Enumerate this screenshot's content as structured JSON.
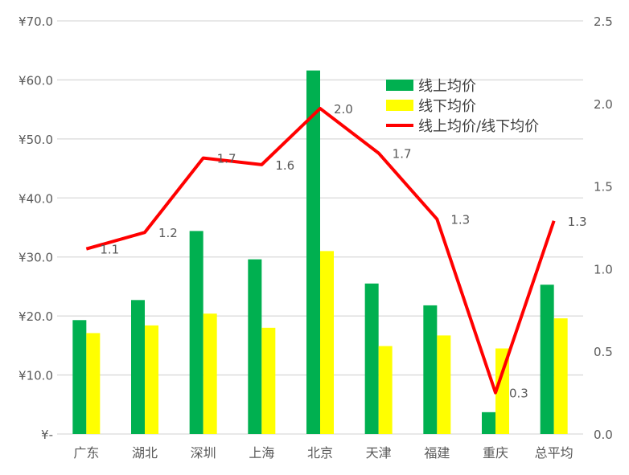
{
  "chart_data": {
    "type": "bar+line",
    "categories": [
      "广东",
      "湖北",
      "深圳",
      "上海",
      "北京",
      "天津",
      "福建",
      "重庆",
      "总平均"
    ],
    "series": [
      {
        "name": "线上均价",
        "type": "bar",
        "axis": "left",
        "color": "#00B050",
        "values": [
          19.3,
          22.7,
          34.4,
          29.6,
          61.6,
          25.5,
          21.8,
          3.7,
          25.3
        ]
      },
      {
        "name": "线下均价",
        "type": "bar",
        "axis": "left",
        "color": "#FFFF00",
        "values": [
          17.1,
          18.4,
          20.4,
          18.0,
          31.0,
          14.9,
          16.7,
          14.5,
          19.6
        ]
      },
      {
        "name": "线上均价/线下均价",
        "type": "line",
        "axis": "right",
        "color": "#FF0000",
        "values": [
          1.12,
          1.22,
          1.67,
          1.63,
          1.97,
          1.7,
          1.3,
          0.25,
          1.29
        ],
        "data_labels": [
          "1.1",
          "1.2",
          "1.7",
          "1.6",
          "2.0",
          "1.7",
          "1.3",
          "0.3",
          "1.3"
        ]
      }
    ],
    "left_axis": {
      "ylim": [
        0,
        70
      ],
      "ticks": [
        "¥-",
        "¥10.0",
        "¥20.0",
        "¥30.0",
        "¥40.0",
        "¥50.0",
        "¥60.0",
        "¥70.0"
      ]
    },
    "right_axis": {
      "ylim": [
        0,
        2.5
      ],
      "ticks": [
        "0.0",
        "0.5",
        "1.0",
        "1.5",
        "2.0",
        "2.5"
      ]
    },
    "grid": true,
    "legend": "top-right"
  }
}
